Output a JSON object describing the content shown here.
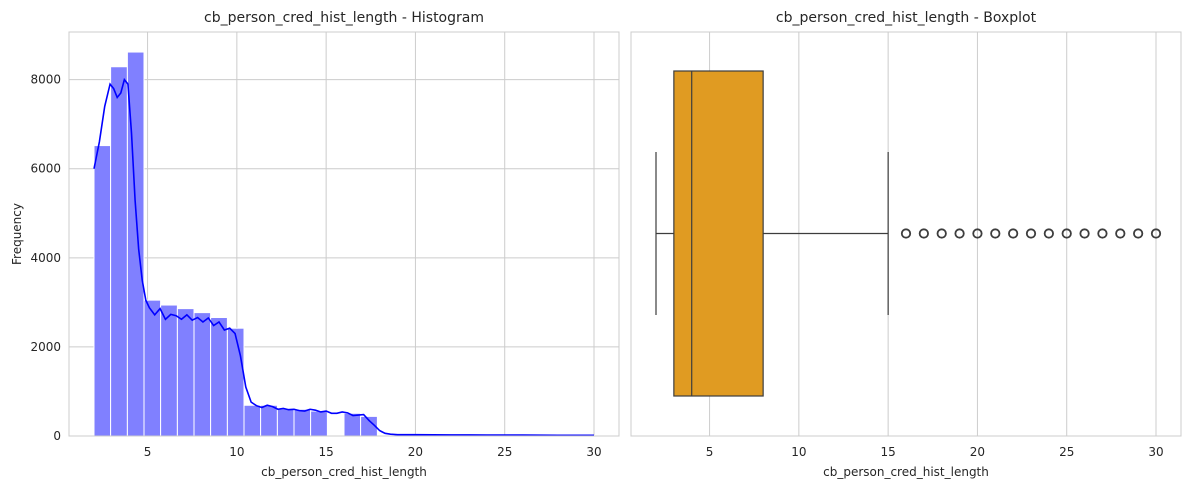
{
  "chart_data": [
    {
      "type": "histogram",
      "title": "cb_person_cred_hist_length - Histogram",
      "xlabel": "cb_person_cred_hist_length",
      "ylabel": "Frequency",
      "xlim": [
        0.6,
        31.4
      ],
      "ylim": [
        0,
        9070
      ],
      "x_ticks": [
        5,
        10,
        15,
        20,
        25,
        30
      ],
      "y_ticks": [
        0,
        2000,
        4000,
        6000,
        8000
      ],
      "grid": true,
      "bar_color": "#8080ff",
      "kde_color": "#0000ff",
      "bins": [
        {
          "x0": 2.0,
          "x1": 2.93,
          "count": 6520
        },
        {
          "x0": 2.93,
          "x1": 3.87,
          "count": 8290
        },
        {
          "x0": 3.87,
          "x1": 4.8,
          "count": 8620
        },
        {
          "x0": 4.8,
          "x1": 5.73,
          "count": 3050
        },
        {
          "x0": 5.73,
          "x1": 6.67,
          "count": 2940
        },
        {
          "x0": 6.67,
          "x1": 7.6,
          "count": 2860
        },
        {
          "x0": 7.6,
          "x1": 8.53,
          "count": 2770
        },
        {
          "x0": 8.53,
          "x1": 9.47,
          "count": 2660
        },
        {
          "x0": 9.47,
          "x1": 10.4,
          "count": 2420
        },
        {
          "x0": 10.4,
          "x1": 11.33,
          "count": 690
        },
        {
          "x0": 11.33,
          "x1": 12.27,
          "count": 690
        },
        {
          "x0": 12.27,
          "x1": 13.2,
          "count": 620
        },
        {
          "x0": 13.2,
          "x1": 14.13,
          "count": 600
        },
        {
          "x0": 14.13,
          "x1": 15.07,
          "count": 560
        },
        {
          "x0": 15.07,
          "x1": 16.0,
          "count": 0
        },
        {
          "x0": 16.0,
          "x1": 16.93,
          "count": 510
        },
        {
          "x0": 16.93,
          "x1": 17.87,
          "count": 440
        },
        {
          "x0": 17.87,
          "x1": 18.8,
          "count": 0
        },
        {
          "x0": 18.8,
          "x1": 19.73,
          "count": 30
        },
        {
          "x0": 19.73,
          "x1": 20.67,
          "count": 30
        },
        {
          "x0": 20.67,
          "x1": 21.6,
          "count": 25
        },
        {
          "x0": 21.6,
          "x1": 22.53,
          "count": 25
        },
        {
          "x0": 22.53,
          "x1": 23.47,
          "count": 20
        },
        {
          "x0": 23.47,
          "x1": 24.4,
          "count": 20
        },
        {
          "x0": 24.4,
          "x1": 25.33,
          "count": 20
        },
        {
          "x0": 25.33,
          "x1": 26.27,
          "count": 15
        },
        {
          "x0": 26.27,
          "x1": 27.2,
          "count": 15
        },
        {
          "x0": 27.2,
          "x1": 28.13,
          "count": 10
        },
        {
          "x0": 28.13,
          "x1": 29.07,
          "count": 10
        },
        {
          "x0": 29.07,
          "x1": 30.0,
          "count": 10
        }
      ],
      "kde": {
        "x": [
          2.0,
          2.3,
          2.6,
          2.9,
          3.1,
          3.3,
          3.5,
          3.7,
          3.9,
          4.1,
          4.3,
          4.5,
          4.7,
          4.9,
          5.1,
          5.4,
          5.7,
          6.0,
          6.3,
          6.6,
          6.9,
          7.2,
          7.5,
          7.8,
          8.1,
          8.4,
          8.7,
          9.0,
          9.3,
          9.6,
          9.9,
          10.2,
          10.5,
          10.8,
          11.1,
          11.4,
          11.7,
          12.0,
          12.3,
          12.6,
          12.9,
          13.2,
          13.5,
          13.8,
          14.1,
          14.4,
          14.7,
          15.0,
          15.3,
          15.6,
          15.9,
          16.2,
          16.5,
          16.8,
          17.1,
          17.4,
          17.7,
          18.0,
          18.3,
          18.6,
          19.0,
          19.5,
          20.0,
          21.0,
          22.0,
          23.0,
          24.0,
          25.0,
          26.0,
          27.0,
          28.0,
          29.0,
          30.0
        ],
        "y": [
          6000,
          6600,
          7400,
          7900,
          7800,
          7600,
          7700,
          8000,
          7900,
          6800,
          5300,
          4200,
          3500,
          3050,
          2880,
          2720,
          2860,
          2620,
          2730,
          2700,
          2620,
          2720,
          2600,
          2660,
          2560,
          2650,
          2480,
          2560,
          2380,
          2420,
          2300,
          1800,
          1100,
          760,
          680,
          640,
          690,
          660,
          600,
          620,
          590,
          600,
          570,
          560,
          600,
          580,
          540,
          560,
          510,
          510,
          540,
          520,
          460,
          470,
          480,
          350,
          240,
          120,
          60,
          40,
          30,
          30,
          30,
          28,
          25,
          25,
          22,
          20,
          20,
          18,
          15,
          15,
          15
        ]
      }
    },
    {
      "type": "boxplot",
      "title": "cb_person_cred_hist_length - Boxplot",
      "xlabel": "cb_person_cred_hist_length",
      "xlim": [
        0.6,
        31.4
      ],
      "x_ticks": [
        5,
        10,
        15,
        20,
        25,
        30
      ],
      "grid": true,
      "box_color": "#e09b22",
      "line_color": "#3d3d3d",
      "whisker_low": 2,
      "q1": 3,
      "median": 4,
      "q3": 8,
      "whisker_high": 15,
      "outliers": [
        16,
        17,
        18,
        19,
        20,
        21,
        22,
        23,
        24,
        25,
        26,
        27,
        28,
        29,
        30
      ]
    }
  ]
}
